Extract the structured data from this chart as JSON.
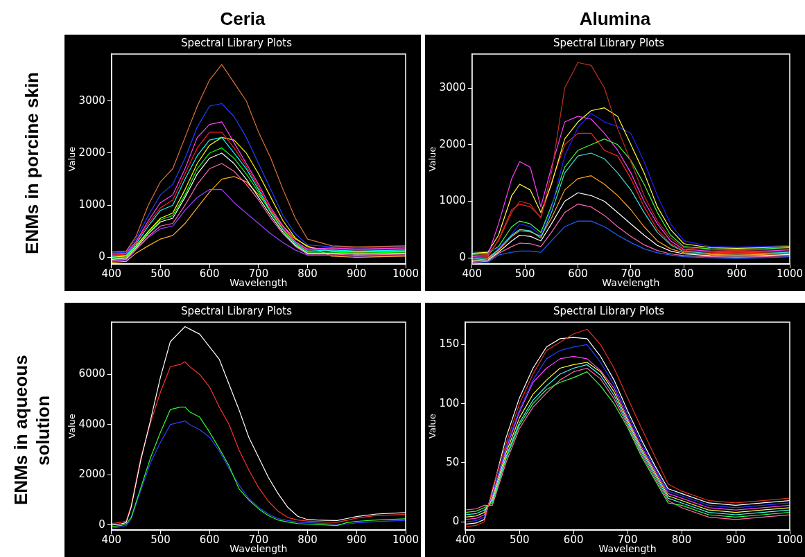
{
  "chart_data": [
    {
      "type": "line",
      "title": "Spectral Library Plots",
      "xlabel": "Wavelength",
      "ylabel": "Value",
      "annotations": [
        "Ceria",
        "ENMs in porcine skin"
      ],
      "xlim": [
        400,
        1000
      ],
      "xticks": [
        400,
        500,
        600,
        700,
        800,
        900,
        1000
      ],
      "ylim": [
        -130,
        3900
      ],
      "yticks": [
        0,
        1000,
        2000,
        3000
      ],
      "x": [
        400,
        430,
        450,
        475,
        500,
        525,
        550,
        575,
        600,
        625,
        650,
        675,
        700,
        725,
        750,
        775,
        800,
        850,
        900,
        950,
        1000
      ],
      "series": [
        {
          "color": "#e0703a",
          "values": [
            100,
            120,
            400,
            1000,
            1450,
            1700,
            2300,
            2900,
            3400,
            3700,
            3350,
            3000,
            2400,
            1900,
            1300,
            750,
            350,
            220,
            200,
            210,
            220
          ]
        },
        {
          "color": "#2040ff",
          "values": [
            80,
            100,
            350,
            800,
            1200,
            1400,
            1900,
            2500,
            2900,
            2950,
            2700,
            2300,
            1800,
            1300,
            800,
            450,
            240,
            200,
            180,
            190,
            200
          ]
        },
        {
          "color": "#ff40ff",
          "values": [
            60,
            80,
            300,
            700,
            1050,
            1200,
            1700,
            2300,
            2550,
            2600,
            2200,
            1800,
            1400,
            950,
            600,
            300,
            160,
            180,
            160,
            170,
            180
          ]
        },
        {
          "color": "#ff2020",
          "values": [
            40,
            60,
            280,
            650,
            950,
            1100,
            1600,
            2100,
            2400,
            2400,
            2100,
            1750,
            1350,
            900,
            560,
            290,
            140,
            160,
            140,
            150,
            160
          ]
        },
        {
          "color": "#00ffff",
          "values": [
            20,
            40,
            250,
            600,
            900,
            1000,
            1500,
            1950,
            2250,
            2300,
            2000,
            1700,
            1300,
            880,
            540,
            270,
            120,
            140,
            120,
            130,
            140
          ]
        },
        {
          "color": "#ffff00",
          "values": [
            0,
            20,
            220,
            500,
            750,
            850,
            1300,
            1800,
            2150,
            2300,
            2250,
            2000,
            1600,
            1150,
            700,
            370,
            200,
            120,
            100,
            110,
            120
          ]
        },
        {
          "color": "#00ff00",
          "values": [
            -20,
            0,
            200,
            480,
            720,
            800,
            1200,
            1700,
            2000,
            2100,
            1900,
            1600,
            1250,
            850,
            520,
            250,
            100,
            100,
            80,
            90,
            100
          ]
        },
        {
          "color": "#ffffff",
          "values": [
            -40,
            -20,
            180,
            450,
            680,
            750,
            1150,
            1600,
            1900,
            2000,
            1800,
            1500,
            1150,
            800,
            480,
            230,
            80,
            80,
            60,
            70,
            80
          ]
        },
        {
          "color": "#ff69b4",
          "values": [
            -60,
            -40,
            160,
            400,
            600,
            650,
            1000,
            1400,
            1700,
            1800,
            1650,
            1400,
            1100,
            750,
            450,
            210,
            60,
            60,
            40,
            50,
            60
          ]
        },
        {
          "color": "#a040ff",
          "values": [
            -80,
            -60,
            140,
            380,
            550,
            600,
            900,
            1150,
            1300,
            1300,
            1050,
            850,
            650,
            450,
            280,
            140,
            40,
            40,
            20,
            30,
            40
          ]
        },
        {
          "color": "#ffb020",
          "values": [
            -100,
            -80,
            80,
            220,
            350,
            420,
            650,
            950,
            1250,
            1500,
            1550,
            1450,
            1200,
            900,
            600,
            350,
            220,
            20,
            0,
            10,
            20
          ]
        }
      ]
    },
    {
      "type": "line",
      "title": "Spectral Library Plots",
      "xlabel": "Wavelength",
      "ylabel": "Value",
      "annotations": [
        "Alumina"
      ],
      "xlim": [
        400,
        1000
      ],
      "xticks": [
        400,
        500,
        600,
        700,
        800,
        900,
        1000
      ],
      "ylim": [
        -110,
        3600
      ],
      "yticks": [
        0,
        1000,
        2000,
        3000
      ],
      "x": [
        400,
        430,
        450,
        475,
        490,
        510,
        530,
        550,
        575,
        600,
        625,
        650,
        675,
        700,
        725,
        750,
        775,
        800,
        850,
        900,
        950,
        1000
      ],
      "series": [
        {
          "color": "#c03020",
          "values": [
            40,
            60,
            300,
            800,
            1000,
            950,
            700,
            1500,
            3000,
            3450,
            3400,
            3000,
            2280,
            1700,
            1100,
            650,
            350,
            180,
            140,
            130,
            140,
            160
          ]
        },
        {
          "color": "#ff40ff",
          "values": [
            20,
            40,
            600,
            1400,
            1700,
            1600,
            900,
            1600,
            2400,
            2500,
            2450,
            2200,
            1900,
            1500,
            1000,
            600,
            300,
            150,
            120,
            110,
            120,
            140
          ]
        },
        {
          "color": "#ffff40",
          "values": [
            80,
            100,
            400,
            1100,
            1300,
            1200,
            800,
            1300,
            2100,
            2400,
            2600,
            2650,
            2500,
            2000,
            1500,
            900,
            500,
            250,
            180,
            170,
            180,
            200
          ]
        },
        {
          "color": "#2020ff",
          "values": [
            100,
            120,
            170,
            420,
            600,
            550,
            400,
            880,
            1800,
            2300,
            2550,
            2400,
            2320,
            2200,
            1700,
            1100,
            600,
            300,
            200,
            190,
            200,
            220
          ]
        },
        {
          "color": "#40ff40",
          "values": [
            60,
            80,
            200,
            550,
            650,
            600,
            450,
            920,
            1600,
            1900,
            2000,
            2100,
            2000,
            1720,
            1300,
            800,
            400,
            200,
            160,
            150,
            160,
            180
          ]
        },
        {
          "color": "#ff2020",
          "values": [
            0,
            20,
            320,
            850,
            950,
            900,
            720,
            1330,
            2000,
            2200,
            2200,
            1900,
            1800,
            1400,
            900,
            500,
            250,
            130,
            100,
            90,
            100,
            120
          ]
        },
        {
          "color": "#40e0d0",
          "values": [
            -20,
            0,
            150,
            400,
            500,
            480,
            350,
            800,
            1500,
            1800,
            1850,
            1750,
            1500,
            1200,
            800,
            450,
            230,
            110,
            80,
            70,
            80,
            100
          ]
        },
        {
          "color": "#ffa020",
          "values": [
            -40,
            -20,
            130,
            380,
            480,
            460,
            380,
            700,
            1200,
            1400,
            1450,
            1300,
            1100,
            850,
            550,
            300,
            160,
            90,
            60,
            50,
            60,
            80
          ]
        },
        {
          "color": "#ffffff",
          "values": [
            -60,
            -40,
            100,
            300,
            400,
            380,
            300,
            600,
            1000,
            1150,
            1100,
            1000,
            800,
            600,
            400,
            220,
            120,
            70,
            40,
            30,
            40,
            60
          ]
        },
        {
          "color": "#ff69b4",
          "values": [
            -80,
            -60,
            80,
            200,
            260,
            250,
            200,
            450,
            800,
            950,
            900,
            750,
            550,
            380,
            230,
            130,
            70,
            40,
            20,
            10,
            20,
            40
          ]
        },
        {
          "color": "#1e60ff",
          "values": [
            -100,
            -80,
            50,
            100,
            120,
            120,
            100,
            300,
            550,
            650,
            650,
            550,
            400,
            270,
            160,
            90,
            50,
            20,
            0,
            -10,
            0,
            20
          ]
        }
      ]
    },
    {
      "type": "line",
      "title": "Spectral Library Plots",
      "xlabel": "Wavelength",
      "ylabel": "Value",
      "annotations": [
        "ENMs in aqueous solution"
      ],
      "xlim": [
        400,
        1000
      ],
      "xticks": [
        400,
        500,
        600,
        700,
        800,
        900,
        1000
      ],
      "ylim": [
        -200,
        8080
      ],
      "yticks": [
        0,
        2000,
        4000,
        6000
      ],
      "x": [
        400,
        420,
        430,
        440,
        460,
        480,
        500,
        520,
        540,
        550,
        560,
        580,
        600,
        620,
        640,
        660,
        680,
        700,
        720,
        740,
        760,
        780,
        800,
        820,
        840,
        860,
        880,
        900,
        940,
        1000
      ],
      "series": [
        {
          "color": "#ffffff",
          "values": [
            0,
            50,
            100,
            700,
            2600,
            4200,
            5900,
            7300,
            7700,
            7900,
            7800,
            7600,
            7100,
            6600,
            5600,
            4600,
            3500,
            2700,
            1900,
            1250,
            700,
            350,
            220,
            200,
            190,
            180,
            260,
            340,
            440,
            500
          ]
        },
        {
          "color": "#ff3030",
          "values": [
            60,
            110,
            160,
            760,
            2700,
            4100,
            5300,
            6300,
            6400,
            6500,
            6300,
            6000,
            5500,
            4700,
            4000,
            3000,
            2200,
            1500,
            950,
            550,
            300,
            200,
            160,
            140,
            120,
            110,
            190,
            280,
            380,
            420
          ]
        },
        {
          "color": "#30ff30",
          "values": [
            -60,
            -10,
            40,
            300,
            1500,
            2700,
            3700,
            4600,
            4700,
            4700,
            4500,
            4300,
            3700,
            3050,
            2350,
            1450,
            1000,
            650,
            380,
            200,
            120,
            60,
            40,
            20,
            0,
            -20,
            100,
            150,
            200,
            250
          ]
        },
        {
          "color": "#3040ff",
          "values": [
            -120,
            -70,
            -20,
            240,
            1400,
            2500,
            3300,
            4000,
            4100,
            4150,
            4000,
            3800,
            3500,
            2950,
            2250,
            1600,
            1060,
            710,
            440,
            260,
            180,
            120,
            100,
            80,
            60,
            40,
            40,
            90,
            140,
            190
          ]
        }
      ]
    },
    {
      "type": "line",
      "title": "Spectral Library Plots",
      "xlabel": "Wavelength",
      "ylabel": "Value",
      "xlim": [
        400,
        1000
      ],
      "xticks": [
        400,
        500,
        600,
        700,
        800,
        900,
        1000
      ],
      "ylim": [
        -7,
        169
      ],
      "yticks": [
        0,
        50,
        100,
        150
      ],
      "x": [
        400,
        420,
        435,
        450,
        475,
        500,
        525,
        550,
        575,
        600,
        625,
        650,
        675,
        700,
        725,
        750,
        775,
        800,
        850,
        900,
        950,
        1000
      ],
      "series": [
        {
          "color": "#e03020",
          "values": [
            -4,
            -3,
            0,
            28,
            66,
            100,
            125,
            145,
            152,
            159,
            163,
            150,
            130,
            105,
            80,
            56,
            32,
            26,
            18,
            16,
            18,
            20
          ]
        },
        {
          "color": "#ffffff",
          "values": [
            -2,
            -1,
            2,
            26,
            71,
            105,
            130,
            148,
            155,
            156,
            155,
            140,
            120,
            94,
            70,
            48,
            28,
            24,
            16,
            14,
            16,
            18
          ]
        },
        {
          "color": "#2040ff",
          "values": [
            0,
            1,
            4,
            24,
            63,
            95,
            120,
            138,
            145,
            148,
            150,
            135,
            116,
            91,
            67,
            46,
            26,
            22,
            14,
            12,
            14,
            16
          ]
        },
        {
          "color": "#ff40ff",
          "values": [
            2,
            3,
            6,
            22,
            61,
            93,
            118,
            130,
            138,
            140,
            138,
            128,
            113,
            88,
            64,
            44,
            24,
            20,
            12,
            10,
            12,
            14
          ]
        },
        {
          "color": "#ffff40",
          "values": [
            4,
            5,
            8,
            20,
            58,
            88,
            108,
            120,
            130,
            133,
            135,
            127,
            110,
            86,
            62,
            42,
            22,
            18,
            10,
            8,
            10,
            12
          ]
        },
        {
          "color": "#40ffff",
          "values": [
            6,
            7,
            10,
            18,
            55,
            84,
            103,
            115,
            125,
            130,
            133,
            124,
            107,
            84,
            60,
            40,
            20,
            16,
            8,
            6,
            8,
            10
          ]
        },
        {
          "color": "#40ff40",
          "values": [
            8,
            9,
            12,
            16,
            53,
            82,
            100,
            112,
            118,
            122,
            127,
            115,
            100,
            80,
            56,
            36,
            16,
            14,
            6,
            4,
            6,
            8
          ]
        },
        {
          "color": "#ff69b4",
          "values": [
            10,
            11,
            14,
            14,
            50,
            79,
            97,
            109,
            120,
            127,
            130,
            121,
            104,
            82,
            58,
            38,
            18,
            12,
            4,
            2,
            4,
            6
          ]
        }
      ]
    }
  ]
}
